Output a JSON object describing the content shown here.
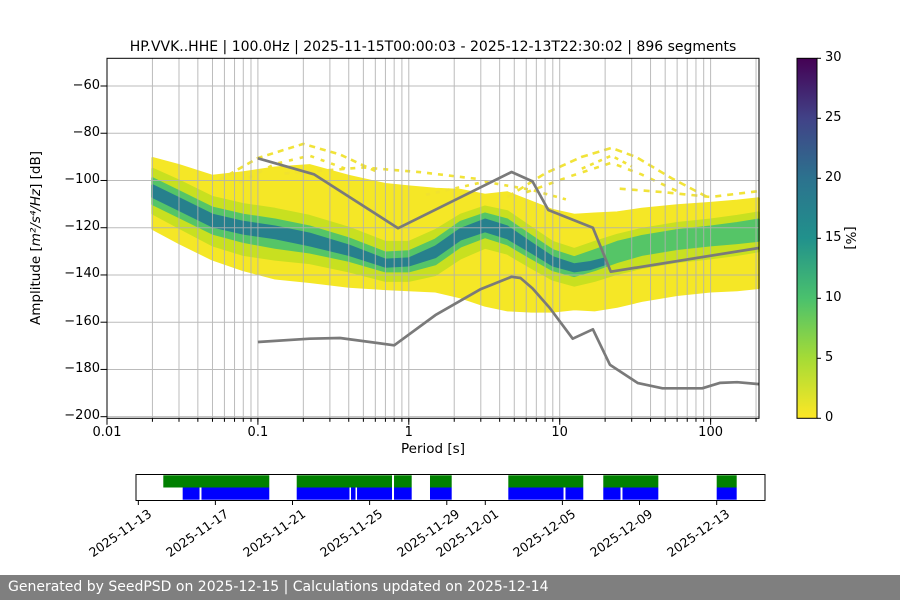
{
  "title": "HP.VVK..HHE | 100.0Hz | 2025-11-15T00:00:03 - 2025-12-13T22:30:02 | 896 segments",
  "axes": {
    "xlabel": "Period [s]",
    "ylabel_prefix": "Amplitude [",
    "ylabel_math": "m²/s⁴/Hz",
    "ylabel_suffix": "] [dB]"
  },
  "footer": {
    "text": "Generated by SeedPSD on 2025-12-15 | Calculations updated on 2025-12-14",
    "bg": "#7f7f7f",
    "fg": "#ffffff"
  },
  "chart_data": {
    "type": "heatmap",
    "title": "HP.VVK..HHE | 100.0Hz | 2025-11-15T00:00:03 - 2025-12-13T22:30:02 | 896 segments",
    "xlabel": "Period [s]",
    "ylabel": "Amplitude [m²/s⁴/Hz] [dB]",
    "x_scale": "log",
    "xlim": [
      0.01,
      209
    ],
    "ylim": [
      -200,
      -48
    ],
    "grid": true,
    "grid_color": "#b0b0b0",
    "x_ticks": {
      "values": [
        0.01,
        0.1,
        1,
        10,
        100
      ],
      "labels": [
        "0.01",
        "0.1",
        "1",
        "10",
        "100"
      ]
    },
    "x_grid_periods": [
      0.02,
      0.03,
      0.04,
      0.05,
      0.06,
      0.07,
      0.08,
      0.09,
      0.1,
      0.2,
      0.3,
      0.4,
      0.5,
      0.6,
      0.7,
      0.8,
      0.9,
      1,
      2,
      3,
      4,
      5,
      6,
      7,
      8,
      9,
      10,
      20,
      30,
      40,
      50,
      60,
      70,
      80,
      90,
      100,
      200
    ],
    "y_ticks": {
      "values": [
        -60,
        -80,
        -100,
        -120,
        -140,
        -160,
        -180,
        -200
      ],
      "labels": [
        "−60",
        "−80",
        "−100",
        "−120",
        "−140",
        "−160",
        "−180",
        "−200"
      ]
    },
    "colorbar": {
      "label": "[%]",
      "min": 0,
      "max": 30,
      "ticks": [
        0,
        5,
        10,
        15,
        20,
        25,
        30
      ],
      "tick_labels": [
        "0",
        "5",
        "10",
        "15",
        "20",
        "25",
        "30"
      ],
      "stops": [
        [
          0,
          "#fde725"
        ],
        [
          0.167,
          "#a5db36"
        ],
        [
          0.333,
          "#4ac16d"
        ],
        [
          0.5,
          "#21918c"
        ],
        [
          0.667,
          "#2c728e"
        ],
        [
          0.833,
          "#414287"
        ],
        [
          1,
          "#440154"
        ]
      ]
    },
    "density_bands": [
      {
        "name": "outer-low-density",
        "color": "#f5e726",
        "periods": [
          0.02,
          0.03,
          0.05,
          0.08,
          0.13,
          0.22,
          0.4,
          0.7,
          1.0,
          1.5,
          2.2,
          3.2,
          4.5,
          6.5,
          9,
          12.5,
          17,
          24,
          35,
          60,
          100,
          150,
          209
        ],
        "top": [
          -90.5,
          -93.5,
          -98,
          -96.5,
          -94.5,
          -93.5,
          -98,
          -101.5,
          -102.5,
          -103.5,
          -104,
          -106,
          -105,
          -109,
          -112.5,
          -114.5,
          -114,
          -113.5,
          -112,
          -110.5,
          -109.5,
          -108.5,
          -107.5
        ],
        "bottom": [
          -120.5,
          -126.5,
          -133.5,
          -138,
          -141.5,
          -143,
          -145,
          -146,
          -146.5,
          -147,
          -149.5,
          -153,
          -155,
          -155.5,
          -155.5,
          -154.5,
          -155,
          -153.5,
          -151,
          -148.5,
          -147,
          -146.5,
          -145.5
        ]
      },
      {
        "name": "mid-density",
        "color": "#c8e020",
        "periods": [
          0.02,
          0.03,
          0.05,
          0.08,
          0.13,
          0.22,
          0.4,
          0.7,
          1.0,
          1.5,
          2.2,
          3.2,
          4.5,
          6.5,
          9,
          12.5,
          17,
          24,
          35,
          60,
          100,
          150,
          209
        ],
        "top": [
          -95,
          -100,
          -107,
          -110,
          -112,
          -115,
          -120,
          -126,
          -126,
          -121,
          -114.5,
          -111,
          -113,
          -120,
          -126,
          -129,
          -126,
          -123,
          -120.5,
          -118,
          -116.5,
          -115,
          -113.5
        ],
        "bottom": [
          -114,
          -120,
          -127.5,
          -131.5,
          -133.5,
          -135,
          -138.5,
          -142.5,
          -142.5,
          -140,
          -133,
          -128.5,
          -131,
          -137,
          -142,
          -144.5,
          -142.5,
          -139.5,
          -137,
          -134.5,
          -133,
          -131.5,
          -130
        ]
      },
      {
        "name": "high-density",
        "color": "#55c567",
        "periods": [
          0.02,
          0.03,
          0.05,
          0.08,
          0.13,
          0.22,
          0.4,
          0.7,
          1.0,
          1.5,
          2.2,
          3.2,
          4.5,
          6.5,
          9,
          12.5,
          17,
          24,
          35,
          60,
          100,
          150,
          209
        ],
        "top": [
          -99,
          -104.5,
          -111.5,
          -114.5,
          -116.5,
          -119.5,
          -124.5,
          -130.5,
          -130,
          -125,
          -117.5,
          -114,
          -116.5,
          -123.5,
          -129.5,
          -132.5,
          -129.5,
          -126,
          -123.5,
          -121,
          -119.5,
          -118,
          -116.5
        ],
        "bottom": [
          -110,
          -115.5,
          -122.5,
          -126,
          -128.5,
          -130.5,
          -134,
          -138.5,
          -138.5,
          -135.5,
          -128,
          -124,
          -127,
          -133,
          -138,
          -140.5,
          -138,
          -134.5,
          -131.5,
          -129,
          -127.5,
          -126.5,
          -125.5
        ]
      },
      {
        "name": "peak-density-core",
        "color": "#27808d",
        "periods": [
          0.02,
          0.03,
          0.05,
          0.08,
          0.13,
          0.22,
          0.4,
          0.7,
          1.0,
          1.5,
          2.2,
          3.2,
          4.5,
          6.5,
          9,
          12.5,
          16,
          20
        ],
        "top": [
          -102,
          -107.5,
          -114.5,
          -117.5,
          -119.5,
          -122.5,
          -127.5,
          -133.5,
          -133,
          -128,
          -120.5,
          -116.5,
          -119.5,
          -126.5,
          -132.5,
          -135.5,
          -134.5,
          -133
        ],
        "bottom": [
          -107,
          -112.5,
          -119.5,
          -122.5,
          -124.5,
          -127.5,
          -131.5,
          -136.5,
          -136,
          -132.5,
          -125,
          -121.5,
          -124.5,
          -130.5,
          -136,
          -138.5,
          -137.5,
          -135.5
        ]
      }
    ],
    "sparse_streaks": [
      {
        "dash": "7 5",
        "points": [
          [
            4.5,
            -107
          ],
          [
            8,
            -97
          ],
          [
            14,
            -90
          ],
          [
            22,
            -86.2
          ],
          [
            32,
            -90
          ],
          [
            55,
            -99
          ],
          [
            95,
            -107
          ]
        ]
      },
      {
        "dash": "5 7",
        "points": [
          [
            6,
            -105
          ],
          [
            12,
            -98
          ],
          [
            22,
            -92.5
          ],
          [
            35,
            -97.5
          ],
          [
            60,
            -104.5
          ]
        ]
      },
      {
        "dash": "4 5",
        "points": [
          [
            14,
            -95
          ],
          [
            22,
            -89.5
          ],
          [
            30,
            -94
          ]
        ]
      },
      {
        "dash": "6 5",
        "points": [
          [
            0.055,
            -100
          ],
          [
            0.1,
            -90.5
          ],
          [
            0.2,
            -84.5
          ],
          [
            0.35,
            -89
          ],
          [
            0.6,
            -96
          ]
        ]
      },
      {
        "dash": "4 7",
        "points": [
          [
            0.075,
            -101
          ],
          [
            0.13,
            -93
          ],
          [
            0.22,
            -89.5
          ],
          [
            0.4,
            -95.5
          ]
        ]
      },
      {
        "dash": "5 6",
        "points": [
          [
            0.15,
            -97
          ],
          [
            0.5,
            -94.5
          ],
          [
            1.2,
            -96.5
          ],
          [
            3,
            -99.5
          ]
        ]
      },
      {
        "dash": "4 6",
        "points": [
          [
            1.3,
            -106
          ],
          [
            3.2,
            -100.5
          ],
          [
            6.5,
            -104
          ],
          [
            11,
            -108
          ]
        ]
      },
      {
        "dash": "6 6",
        "points": [
          [
            25,
            -103.5
          ],
          [
            50,
            -105
          ],
          [
            100,
            -107
          ],
          [
            209,
            -104.5
          ]
        ]
      }
    ],
    "noise_models": {
      "color": "#7a7a7a",
      "high": [
        [
          0.1,
          -90.6
        ],
        [
          0.235,
          -97.4
        ],
        [
          0.85,
          -120.2
        ],
        [
          4.8,
          -96.4
        ],
        [
          6.6,
          -100.4
        ],
        [
          8.4,
          -112.5
        ],
        [
          16.6,
          -120
        ],
        [
          21.8,
          -138.6
        ],
        [
          209,
          -128.6
        ]
      ],
      "low": [
        [
          0.1,
          -168.4
        ],
        [
          0.22,
          -167
        ],
        [
          0.35,
          -166.7
        ],
        [
          0.8,
          -169.8
        ],
        [
          1.5,
          -157
        ],
        [
          3,
          -146
        ],
        [
          4.8,
          -140.8
        ],
        [
          5.5,
          -141.3
        ],
        [
          6.6,
          -145.7
        ],
        [
          8.6,
          -154
        ],
        [
          12.2,
          -167
        ],
        [
          16.6,
          -163
        ],
        [
          21.5,
          -178
        ],
        [
          33,
          -185.8
        ],
        [
          48,
          -188
        ],
        [
          88,
          -188
        ],
        [
          115,
          -185.7
        ],
        [
          150,
          -185.4
        ],
        [
          209,
          -186.2
        ]
      ]
    }
  },
  "timeline": {
    "rows": [
      {
        "name": "data-availability",
        "color": "#008000",
        "segments_pct": [
          [
            4.34,
            21.19
          ],
          [
            25.55,
            40.7
          ],
          [
            41.02,
            43.83
          ],
          [
            46.74,
            50.19
          ],
          [
            59.19,
            71.11
          ],
          [
            74.29,
            83.04
          ],
          [
            92.32,
            95.5
          ]
        ]
      },
      {
        "name": "psd-coverage",
        "color": "#0000ff",
        "segments_pct": [
          [
            7.42,
            10.1
          ],
          [
            10.41,
            21.19
          ],
          [
            25.55,
            33.94
          ],
          [
            34.18,
            34.9
          ],
          [
            35.14,
            40.7
          ],
          [
            41.02,
            43.83
          ],
          [
            46.74,
            50.19
          ],
          [
            59.19,
            67.97
          ],
          [
            68.28,
            71.11
          ],
          [
            74.29,
            77.03
          ],
          [
            77.34,
            83.04
          ],
          [
            92.32,
            95.5
          ]
        ]
      }
    ],
    "date_ticks": [
      {
        "label": "2025-11-13",
        "pct": 0.37
      },
      {
        "label": "2025-11-17",
        "pct": 12.62
      },
      {
        "label": "2025-11-21",
        "pct": 24.88
      },
      {
        "label": "2025-11-25",
        "pct": 37.14
      },
      {
        "label": "2025-11-29",
        "pct": 49.41
      },
      {
        "label": "2025-12-01",
        "pct": 55.53
      },
      {
        "label": "2025-12-05",
        "pct": 67.79
      },
      {
        "label": "2025-12-09",
        "pct": 80.05
      },
      {
        "label": "2025-12-13",
        "pct": 92.32
      }
    ]
  }
}
